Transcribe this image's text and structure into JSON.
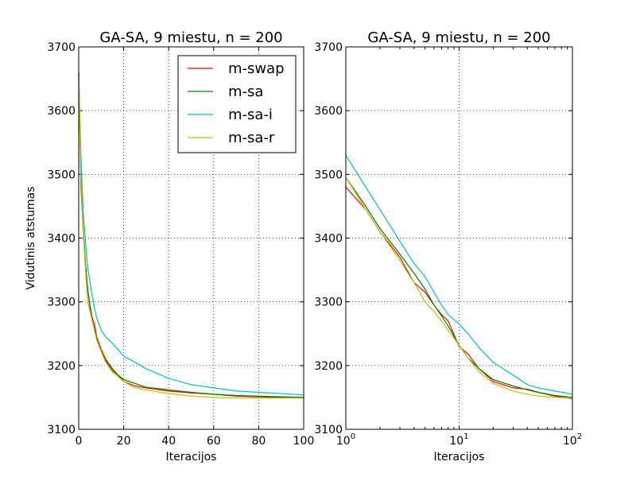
{
  "chart_data": [
    {
      "type": "line",
      "title": "GA-SA, 9 miestu, n = 200",
      "xlabel": "Iteracijos",
      "ylabel": "Vidutinis atstumas",
      "xscale": "linear",
      "xlim": [
        0,
        100
      ],
      "ylim": [
        3100,
        3700
      ],
      "x_ticks": [
        "0",
        "20",
        "40",
        "60",
        "80",
        "100"
      ],
      "y_ticks": [
        "3100",
        "3200",
        "3300",
        "3400",
        "3500",
        "3600",
        "3700"
      ],
      "grid": true,
      "legend": "upper-right",
      "series": [
        {
          "name": "m-swap",
          "color": "#ff0000",
          "x": [
            0,
            1,
            2,
            3,
            4,
            5,
            6,
            7,
            8,
            10,
            12,
            15,
            20,
            25,
            30,
            40,
            50,
            60,
            70,
            80,
            90,
            100
          ],
          "y": [
            3660,
            3480,
            3410,
            3360,
            3320,
            3295,
            3275,
            3265,
            3245,
            3225,
            3210,
            3195,
            3175,
            3168,
            3165,
            3160,
            3157,
            3155,
            3152,
            3151,
            3150,
            3150
          ]
        },
        {
          "name": "m-sa",
          "color": "#008000",
          "x": [
            0,
            1,
            2,
            3,
            4,
            5,
            6,
            7,
            8,
            10,
            12,
            15,
            20,
            25,
            30,
            40,
            50,
            60,
            70,
            80,
            90,
            100
          ],
          "y": [
            3660,
            3495,
            3415,
            3360,
            3320,
            3292,
            3270,
            3258,
            3242,
            3222,
            3208,
            3192,
            3178,
            3172,
            3166,
            3162,
            3158,
            3155,
            3153,
            3152,
            3151,
            3150
          ]
        },
        {
          "name": "m-sa-i",
          "color": "#00bfbf",
          "x": [
            0,
            1,
            2,
            3,
            4,
            5,
            6,
            7,
            8,
            10,
            12,
            15,
            20,
            25,
            30,
            40,
            50,
            60,
            70,
            80,
            90,
            100
          ],
          "y": [
            3660,
            3530,
            3440,
            3395,
            3355,
            3330,
            3310,
            3290,
            3275,
            3255,
            3245,
            3235,
            3215,
            3205,
            3195,
            3180,
            3170,
            3165,
            3160,
            3158,
            3156,
            3154
          ]
        },
        {
          "name": "m-sa-r",
          "color": "#bfbf00",
          "x": [
            0,
            1,
            2,
            3,
            4,
            5,
            6,
            7,
            8,
            10,
            12,
            15,
            20,
            25,
            30,
            40,
            50,
            60,
            70,
            80,
            90,
            100
          ],
          "y": [
            3660,
            3495,
            3410,
            3350,
            3300,
            3285,
            3270,
            3255,
            3240,
            3222,
            3205,
            3190,
            3175,
            3165,
            3162,
            3156,
            3152,
            3150,
            3149,
            3149,
            3149,
            3149
          ]
        }
      ]
    },
    {
      "type": "line",
      "title": "GA-SA, 9 miestu, n = 200",
      "xlabel": "Iteracijos",
      "ylabel": "",
      "xscale": "log",
      "xlim": [
        1,
        100
      ],
      "ylim": [
        3100,
        3700
      ],
      "x_ticks": [
        {
          "base": "10",
          "exp": "0"
        },
        {
          "base": "10",
          "exp": "1"
        },
        {
          "base": "10",
          "exp": "2"
        }
      ],
      "y_ticks": [
        "3100",
        "3200",
        "3300",
        "3400",
        "3500",
        "3600",
        "3700"
      ],
      "grid": true,
      "series": [
        {
          "name": "m-swap",
          "color": "#ff0000",
          "x": [
            1,
            1.5,
            2,
            3,
            4,
            5,
            6,
            7,
            8,
            10,
            12,
            15,
            20,
            30,
            40,
            50,
            70,
            100
          ],
          "y": [
            3480,
            3445,
            3410,
            3370,
            3330,
            3315,
            3295,
            3280,
            3270,
            3230,
            3218,
            3195,
            3175,
            3165,
            3163,
            3158,
            3152,
            3148
          ]
        },
        {
          "name": "m-sa",
          "color": "#008000",
          "x": [
            1,
            1.5,
            2,
            3,
            4,
            5,
            6,
            7,
            8,
            10,
            12,
            15,
            20,
            30,
            40,
            50,
            70,
            100
          ],
          "y": [
            3495,
            3450,
            3415,
            3375,
            3345,
            3320,
            3295,
            3278,
            3262,
            3232,
            3212,
            3195,
            3178,
            3168,
            3162,
            3158,
            3153,
            3150
          ]
        },
        {
          "name": "m-sa-i",
          "color": "#00bfbf",
          "x": [
            1,
            1.5,
            2,
            3,
            4,
            5,
            6,
            7,
            8,
            10,
            12,
            15,
            20,
            30,
            40,
            50,
            70,
            100
          ],
          "y": [
            3530,
            3480,
            3445,
            3395,
            3360,
            3340,
            3315,
            3295,
            3280,
            3265,
            3250,
            3228,
            3205,
            3185,
            3170,
            3165,
            3160,
            3155
          ]
        },
        {
          "name": "m-sa-r",
          "color": "#bfbf00",
          "x": [
            1,
            1.5,
            2,
            3,
            4,
            5,
            6,
            7,
            8,
            10,
            12,
            15,
            20,
            30,
            40,
            50,
            70,
            100
          ],
          "y": [
            3495,
            3445,
            3410,
            3365,
            3330,
            3300,
            3285,
            3270,
            3255,
            3232,
            3212,
            3190,
            3172,
            3160,
            3155,
            3152,
            3150,
            3149
          ]
        }
      ]
    }
  ]
}
